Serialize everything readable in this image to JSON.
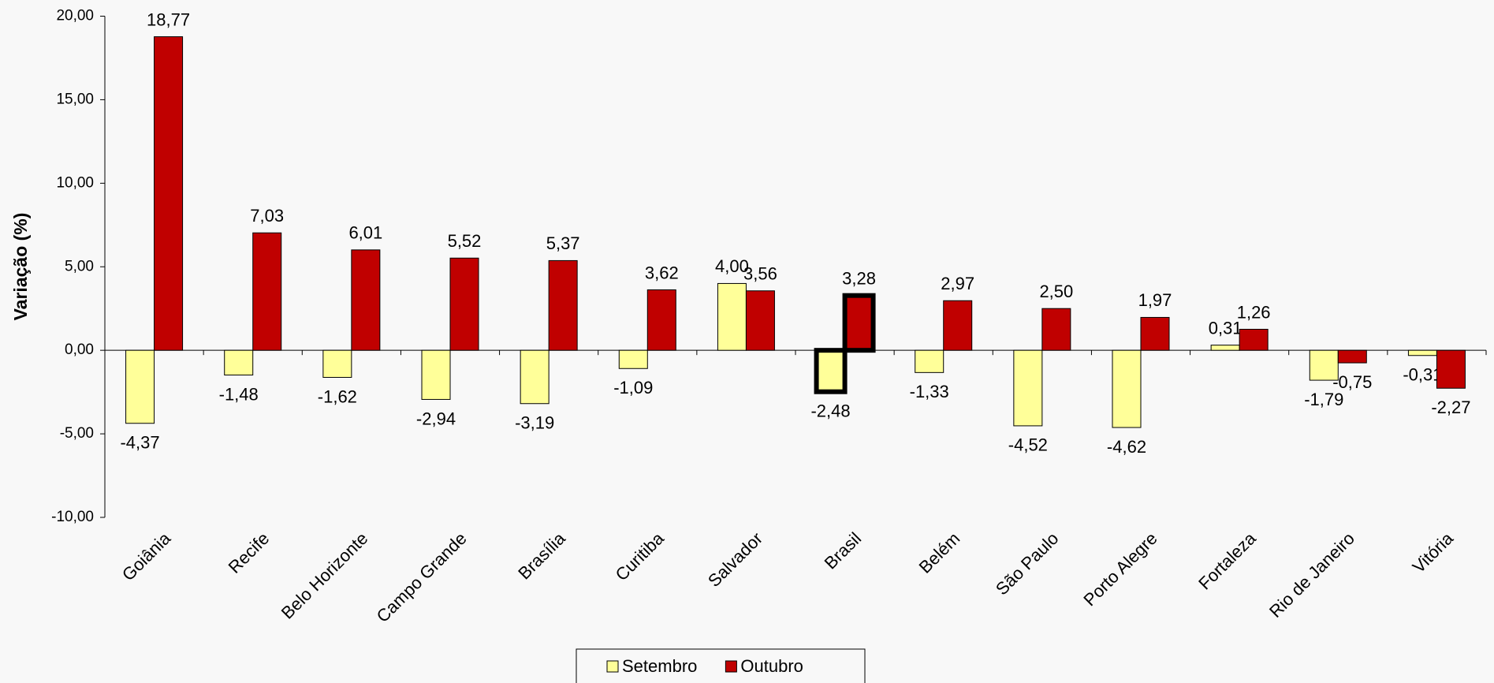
{
  "chart_data": {
    "type": "bar",
    "y_label": "Variação (%)",
    "categories": [
      "Goiânia",
      "Recife",
      "Belo Horizonte",
      "Campo Grande",
      "Brasília",
      "Curitiba",
      "Salvador",
      "Brasil",
      "Belém",
      "São Paulo",
      "Porto Alegre",
      "Fortaleza",
      "Rio de Janeiro",
      "Vitória"
    ],
    "series": [
      {
        "name": "Setembro",
        "color": "#ffff99",
        "values": [
          -4.37,
          -1.48,
          -1.62,
          -2.94,
          -3.19,
          -1.09,
          4.0,
          -2.48,
          -1.33,
          -4.52,
          -4.62,
          0.31,
          -1.79,
          -0.31
        ],
        "value_labels": [
          "-4,37",
          "-1,48",
          "-1,62",
          "-2,94",
          "-3,19",
          "-1,09",
          "4,00",
          "-2,48",
          "-1,33",
          "-4,52",
          "-4,62",
          "0,31",
          "-1,79",
          "-0,31"
        ]
      },
      {
        "name": "Outubro",
        "color": "#c00000",
        "values": [
          18.77,
          7.03,
          6.01,
          5.52,
          5.37,
          3.62,
          3.56,
          3.28,
          2.97,
          2.5,
          1.97,
          1.26,
          -0.75,
          -2.27
        ],
        "value_labels": [
          "18,77",
          "7,03",
          "6,01",
          "5,52",
          "5,37",
          "3,62",
          "3,56",
          "3,28",
          "2,97",
          "2,50",
          "1,97",
          "1,26",
          "-0,75",
          "-2,27"
        ]
      }
    ],
    "ylim": [
      -10,
      20
    ],
    "yticks": [
      {
        "value": -10,
        "label": "-10,00"
      },
      {
        "value": -5,
        "label": "-5,00"
      },
      {
        "value": 0,
        "label": "0,00"
      },
      {
        "value": 5,
        "label": "5,00"
      },
      {
        "value": 10,
        "label": "10,00"
      },
      {
        "value": 15,
        "label": "15,00"
      },
      {
        "value": 20,
        "label": "20,00"
      }
    ],
    "highlight_index": 7,
    "legend": "bottom"
  }
}
